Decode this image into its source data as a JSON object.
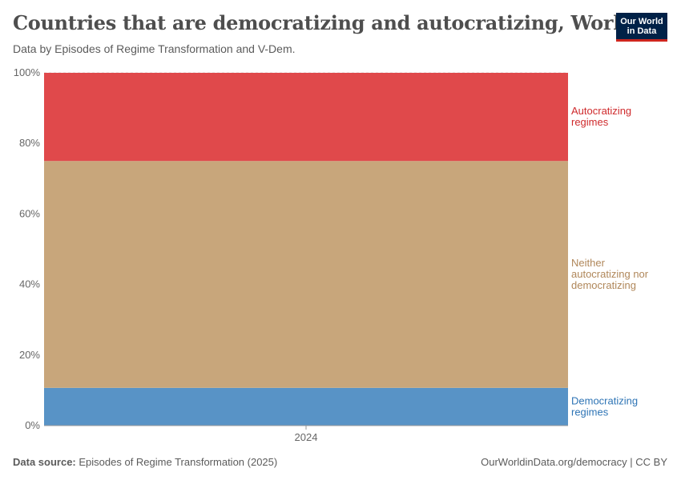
{
  "header": {
    "title": "Countries that are democratizing and autocratizing, World",
    "subtitle": "Data by Episodes of Regime Transformation and V-Dem."
  },
  "logo": {
    "line1": "Our World",
    "line2": "in Data"
  },
  "footer": {
    "source_label": "Data source:",
    "source_value": "Episodes of Regime Transformation (2025)",
    "url": "OurWorldinData.org/democracy | CC BY"
  },
  "chart_data": {
    "type": "bar",
    "stacked": true,
    "categories": [
      "2024"
    ],
    "ylim": [
      0,
      100
    ],
    "yticks": [
      "0%",
      "20%",
      "40%",
      "60%",
      "80%",
      "100%"
    ],
    "grid": true,
    "legend": "right",
    "series": [
      {
        "name": "Democratizing regimes",
        "label_lines": [
          "Democratizing",
          "regimes"
        ],
        "values": [
          10.7
        ],
        "color": "#5893c6",
        "label_color": "#2e74b5"
      },
      {
        "name": "Neither autocratizing nor democratizing",
        "label_lines": [
          "Neither",
          "autocratizing nor",
          "democratizing"
        ],
        "values": [
          64.3
        ],
        "color": "#c8a67b",
        "label_color": "#b0875a"
      },
      {
        "name": "Autocratizing regimes",
        "label_lines": [
          "Autocratizing",
          "regimes"
        ],
        "values": [
          25.0
        ],
        "color": "#e0494b",
        "label_color": "#cf2a2c"
      }
    ]
  }
}
